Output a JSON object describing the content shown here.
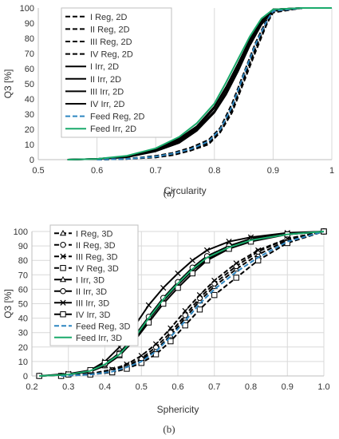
{
  "panel_labels": [
    "(a)",
    "(b)"
  ],
  "chart_data": [
    {
      "type": "line",
      "panel": "(a)",
      "xlabel": "Circularity",
      "ylabel": "Q3 [%]",
      "xlim": [
        0.5,
        1.0
      ],
      "ylim": [
        0,
        100
      ],
      "x_ticks": [
        "0.5",
        "0.6",
        "0.7",
        "0.8",
        "0.9",
        "1"
      ],
      "y_ticks": [
        "0",
        "10",
        "20",
        "30",
        "40",
        "50",
        "60",
        "70",
        "80",
        "90",
        "100"
      ],
      "grid": "vertical",
      "legend": "top-left",
      "series": [
        {
          "name": "I Reg, 2D",
          "color": "#000000",
          "dash": "dashed",
          "x": [
            0.6,
            0.65,
            0.7,
            0.73,
            0.76,
            0.79,
            0.81,
            0.83,
            0.85,
            0.87,
            0.89,
            0.9,
            0.95,
            1.0
          ],
          "y": [
            0,
            0.5,
            2,
            4,
            7,
            12,
            20,
            35,
            55,
            75,
            92,
            98,
            100,
            100
          ]
        },
        {
          "name": "II Reg, 2D",
          "color": "#000000",
          "dash": "dashed",
          "x": [
            0.6,
            0.65,
            0.7,
            0.73,
            0.76,
            0.79,
            0.81,
            0.83,
            0.85,
            0.87,
            0.89,
            0.9,
            0.95,
            1.0
          ],
          "y": [
            0,
            0.5,
            2,
            3.5,
            6.5,
            11,
            19,
            33,
            53,
            73,
            91,
            98,
            100,
            100
          ]
        },
        {
          "name": "III Reg, 2D",
          "color": "#000000",
          "dash": "dashed",
          "x": [
            0.6,
            0.65,
            0.7,
            0.73,
            0.76,
            0.79,
            0.81,
            0.83,
            0.85,
            0.87,
            0.89,
            0.9,
            0.95,
            1.0
          ],
          "y": [
            0,
            0.5,
            2.5,
            4.5,
            8,
            13,
            21,
            37,
            57,
            77,
            93,
            99,
            100,
            100
          ]
        },
        {
          "name": "IV Reg, 2D",
          "color": "#000000",
          "dash": "dashed",
          "x": [
            0.6,
            0.65,
            0.7,
            0.73,
            0.76,
            0.79,
            0.81,
            0.83,
            0.85,
            0.87,
            0.89,
            0.9,
            0.95,
            1.0
          ],
          "y": [
            0,
            0.5,
            1.5,
            3,
            6,
            10,
            18,
            31,
            51,
            71,
            90,
            97,
            100,
            100
          ]
        },
        {
          "name": "I Irr, 2D",
          "color": "#000000",
          "dash": "solid",
          "x": [
            0.55,
            0.6,
            0.65,
            0.7,
            0.74,
            0.77,
            0.8,
            0.82,
            0.84,
            0.86,
            0.88,
            0.9,
            0.95,
            1.0
          ],
          "y": [
            0,
            0.5,
            2,
            6,
            12,
            20,
            32,
            45,
            60,
            76,
            90,
            99,
            100,
            100
          ]
        },
        {
          "name": "II Irr, 2D",
          "color": "#000000",
          "dash": "solid",
          "x": [
            0.55,
            0.6,
            0.65,
            0.7,
            0.74,
            0.77,
            0.8,
            0.82,
            0.84,
            0.86,
            0.88,
            0.9,
            0.95,
            1.0
          ],
          "y": [
            0,
            0.5,
            2,
            6.5,
            13,
            21,
            34,
            47,
            62,
            78,
            91,
            99,
            100,
            100
          ]
        },
        {
          "name": "III Irr, 2D",
          "color": "#000000",
          "dash": "solid",
          "x": [
            0.55,
            0.6,
            0.65,
            0.7,
            0.74,
            0.77,
            0.8,
            0.82,
            0.84,
            0.86,
            0.88,
            0.9,
            0.95,
            1.0
          ],
          "y": [
            0,
            0.5,
            1.5,
            5.5,
            11,
            19,
            31,
            43,
            58,
            75,
            89,
            98,
            100,
            100
          ]
        },
        {
          "name": "IV Irr, 2D",
          "color": "#000000",
          "dash": "solid",
          "x": [
            0.55,
            0.6,
            0.65,
            0.7,
            0.74,
            0.77,
            0.8,
            0.82,
            0.84,
            0.86,
            0.88,
            0.9,
            0.95,
            1.0
          ],
          "y": [
            0,
            0.5,
            2,
            7,
            14,
            22,
            35,
            48,
            63,
            79,
            92,
            99,
            100,
            100
          ]
        },
        {
          "name": "Feed Reg, 2D",
          "color": "#2e86c1",
          "dash": "dashed",
          "x": [
            0.6,
            0.65,
            0.7,
            0.73,
            0.76,
            0.79,
            0.81,
            0.83,
            0.85,
            0.87,
            0.89,
            0.9,
            0.95,
            1.0
          ],
          "y": [
            0,
            0.5,
            2,
            4,
            7,
            12,
            20,
            35,
            56,
            76,
            92,
            98,
            100,
            100
          ]
        },
        {
          "name": "Feed Irr, 2D",
          "color": "#1aaa6b",
          "dash": "solid",
          "x": [
            0.55,
            0.6,
            0.65,
            0.7,
            0.74,
            0.77,
            0.8,
            0.82,
            0.84,
            0.86,
            0.88,
            0.9,
            0.95,
            1.0
          ],
          "y": [
            0,
            0.5,
            2.5,
            7.5,
            15,
            24,
            37,
            51,
            66,
            81,
            93,
            99,
            100,
            100
          ]
        }
      ]
    },
    {
      "type": "line",
      "panel": "(b)",
      "xlabel": "Sphericity",
      "ylabel": "Q3 [%]",
      "xlim": [
        0.2,
        1.0
      ],
      "ylim": [
        0,
        100
      ],
      "x_ticks": [
        "0.2",
        "0.3",
        "0.4",
        "0.5",
        "0.6",
        "0.7",
        "0.8",
        "0.9",
        "1.0"
      ],
      "y_ticks": [
        "0",
        "10",
        "20",
        "30",
        "40",
        "50",
        "60",
        "70",
        "80",
        "90",
        "100"
      ],
      "grid": "both",
      "legend": "top-left",
      "series": [
        {
          "name": "I Reg, 3D",
          "color": "#000000",
          "dash": "dashed",
          "marker": "triangle",
          "x": [
            0.28,
            0.36,
            0.42,
            0.46,
            0.5,
            0.54,
            0.58,
            0.62,
            0.66,
            0.7,
            0.76,
            0.82,
            0.9,
            1.0
          ],
          "y": [
            0,
            1,
            3,
            6,
            11,
            18,
            28,
            40,
            52,
            62,
            74,
            84,
            94,
            100
          ]
        },
        {
          "name": "II Reg, 3D",
          "color": "#000000",
          "dash": "dashed",
          "marker": "circle",
          "x": [
            0.28,
            0.36,
            0.42,
            0.46,
            0.5,
            0.54,
            0.58,
            0.62,
            0.66,
            0.7,
            0.76,
            0.82,
            0.9,
            1.0
          ],
          "y": [
            0,
            1.5,
            4,
            7,
            12,
            20,
            30,
            42,
            54,
            64,
            76,
            86,
            95,
            100
          ]
        },
        {
          "name": "III Reg, 3D",
          "color": "#000000",
          "dash": "dashed",
          "marker": "x",
          "x": [
            0.28,
            0.36,
            0.42,
            0.46,
            0.5,
            0.54,
            0.58,
            0.62,
            0.66,
            0.7,
            0.76,
            0.82,
            0.9,
            1.0
          ],
          "y": [
            0,
            1.5,
            4.5,
            8,
            14,
            22,
            33,
            45,
            56,
            66,
            78,
            87,
            95,
            100
          ]
        },
        {
          "name": "IV Reg, 3D",
          "color": "#000000",
          "dash": "dashed",
          "marker": "square",
          "x": [
            0.28,
            0.36,
            0.42,
            0.46,
            0.5,
            0.54,
            0.58,
            0.62,
            0.66,
            0.7,
            0.76,
            0.82,
            0.9,
            1.0
          ],
          "y": [
            0,
            1,
            2.5,
            5,
            9,
            15,
            24,
            35,
            46,
            56,
            68,
            80,
            92,
            100
          ]
        },
        {
          "name": "I Irr, 3D",
          "color": "#000000",
          "dash": "solid",
          "marker": "triangle",
          "x": [
            0.22,
            0.3,
            0.36,
            0.4,
            0.44,
            0.48,
            0.52,
            0.56,
            0.6,
            0.64,
            0.68,
            0.74,
            0.8,
            0.9,
            1.0
          ],
          "y": [
            0,
            1,
            3,
            7,
            14,
            25,
            39,
            52,
            63,
            73,
            81,
            89,
            94,
            98,
            100
          ]
        },
        {
          "name": "II Irr, 3D",
          "color": "#000000",
          "dash": "solid",
          "marker": "circle",
          "x": [
            0.22,
            0.3,
            0.36,
            0.4,
            0.44,
            0.48,
            0.52,
            0.56,
            0.6,
            0.64,
            0.68,
            0.74,
            0.8,
            0.9,
            1.0
          ],
          "y": [
            0,
            1,
            3.5,
            8,
            16,
            27,
            41,
            54,
            65,
            75,
            83,
            90,
            95,
            98,
            100
          ]
        },
        {
          "name": "III Irr, 3D",
          "color": "#000000",
          "dash": "solid",
          "marker": "x",
          "x": [
            0.22,
            0.3,
            0.36,
            0.4,
            0.44,
            0.48,
            0.52,
            0.56,
            0.6,
            0.64,
            0.68,
            0.74,
            0.8,
            0.9,
            1.0
          ],
          "y": [
            0,
            1.5,
            4,
            10,
            20,
            34,
            49,
            61,
            71,
            80,
            87,
            93,
            96,
            99,
            100
          ]
        },
        {
          "name": "IV Irr, 3D",
          "color": "#000000",
          "dash": "solid",
          "marker": "square",
          "x": [
            0.22,
            0.3,
            0.36,
            0.4,
            0.44,
            0.48,
            0.52,
            0.56,
            0.6,
            0.64,
            0.68,
            0.74,
            0.8,
            0.9,
            1.0
          ],
          "y": [
            0,
            1,
            4,
            9,
            15,
            24,
            37,
            50,
            61,
            71,
            80,
            88,
            93,
            98,
            100
          ]
        },
        {
          "name": "Feed Reg, 3D",
          "color": "#2e86c1",
          "dash": "dashed",
          "marker": "none",
          "x": [
            0.28,
            0.36,
            0.42,
            0.46,
            0.5,
            0.54,
            0.58,
            0.62,
            0.66,
            0.7,
            0.76,
            0.82,
            0.9,
            1.0
          ],
          "y": [
            0,
            1,
            3,
            6,
            10,
            17,
            27,
            38,
            50,
            60,
            72,
            82,
            93,
            100
          ]
        },
        {
          "name": "Feed Irr, 3D",
          "color": "#1aaa6b",
          "dash": "solid",
          "marker": "none",
          "x": [
            0.22,
            0.3,
            0.36,
            0.4,
            0.44,
            0.48,
            0.52,
            0.56,
            0.6,
            0.64,
            0.68,
            0.74,
            0.8,
            0.9,
            1.0
          ],
          "y": [
            0,
            1,
            3.5,
            8,
            15,
            26,
            40,
            53,
            64,
            74,
            82,
            89,
            94,
            98,
            100
          ]
        }
      ]
    }
  ]
}
